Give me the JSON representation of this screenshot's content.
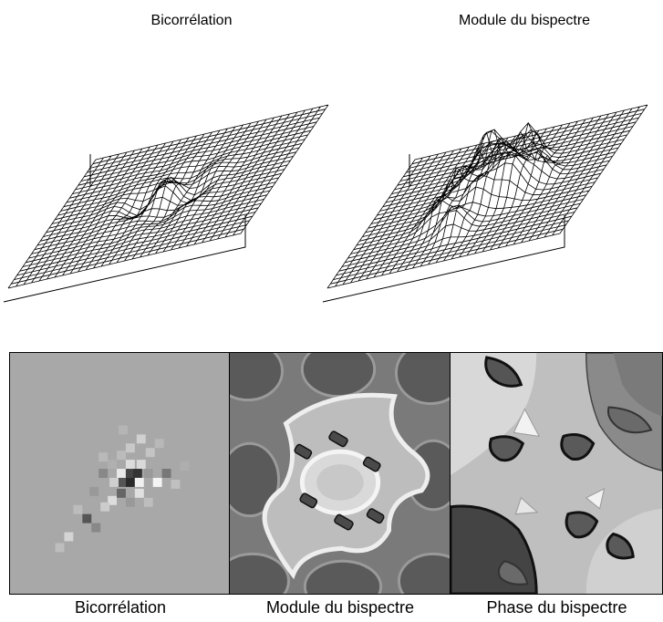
{
  "top_titles": [
    "Bicorrélation",
    "Module du bispectre"
  ],
  "bottom_captions": [
    "Bicorrélation",
    "Module du bispectre",
    "Phase du bispectre"
  ],
  "colors": {
    "background": "#ffffff",
    "mesh_line": "#000000",
    "map_gray": "#a6a6a6",
    "map_dark": "#333333",
    "map_light": "#e8e8e8"
  }
}
